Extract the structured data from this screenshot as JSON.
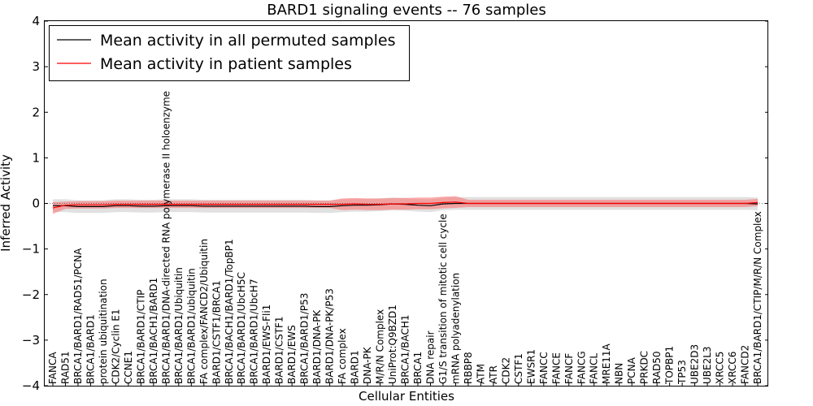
{
  "chart_data": {
    "type": "line",
    "title": "BARD1 signaling events -- 76 samples",
    "xlabel": "Cellular Entities",
    "ylabel": "Inferred Activity",
    "ylim": [
      -4,
      4
    ],
    "yticks": [
      -4,
      -3,
      -2,
      -1,
      0,
      1,
      2,
      3,
      4
    ],
    "ytick_labels": [
      "−4",
      "−3",
      "−2",
      "−1",
      "0",
      "1",
      "2",
      "3",
      "4"
    ],
    "legend": {
      "placement": "top-left",
      "entries": [
        {
          "label": "Mean activity in all permuted samples",
          "color": "#000000"
        },
        {
          "label": "Mean activity in patient samples",
          "color": "#ff0000"
        }
      ]
    },
    "categories": [
      "FANCA",
      "RAD51",
      "BRCA1/BARD1/RAD51/PCNA",
      "BRCA1/BARD1",
      "protein ubiquitination",
      "CDK2/Cyclin E1",
      "CCNE1",
      "BRCA1/BARD1/CTIP",
      "BRCA1/BACH1/BARD1",
      "BRCA1/BARD1/DNA-directed RNA polymerase II holoenzyme",
      "BRCA1/BARD1/Ubiquitin",
      "BRCA1/BARD1/ubiquitin",
      "FA complex/FANCD2/Ubiquitin",
      "BARD1/CSTF1/BRCA1",
      "BRCA1/BACH1/BARD1/TopBP1",
      "BRCA1/BARD1/UbcH5C",
      "BRCA1/BARD1/UbcH7",
      "BARD1/EWS-Fli1",
      "BARD1/CSTF1",
      "BARD1/EWS",
      "BRCA1/BARD1/P53",
      "BARD1/DNA-PK",
      "BARD1/DNA-PK/P53",
      "FA complex",
      "BARD1",
      "DNA-PK",
      "M/R/N Complex",
      "UniProt:Q9BZD1",
      "BRCA1/BACH1",
      "BRCA1",
      "DNA repair",
      "G1/S transition of mitotic cell cycle",
      "mRNA polyadenylation",
      "RBBP8",
      "ATM",
      "ATR",
      "CDK2",
      "CSTF1",
      "EWSR1",
      "FANCC",
      "FANCE",
      "FANCF",
      "FANCG",
      "FANCL",
      "MRE11A",
      "NBN",
      "PCNA",
      "PRKDC",
      "RAD50",
      "TOPBP1",
      "TP53",
      "UBE2D3",
      "UBE2L3",
      "XRCC5",
      "XRCC6",
      "FANCD2",
      "BRCA1/BARD1/CTIP/M/R/N Complex"
    ],
    "series": [
      {
        "name": "Mean activity in all permuted samples",
        "color": "#000000",
        "values": [
          -0.05,
          -0.05,
          -0.07,
          -0.07,
          -0.07,
          -0.05,
          -0.05,
          -0.06,
          -0.06,
          -0.05,
          -0.05,
          -0.05,
          -0.06,
          -0.06,
          -0.06,
          -0.06,
          -0.06,
          -0.06,
          -0.06,
          -0.06,
          -0.06,
          -0.07,
          -0.07,
          -0.05,
          -0.04,
          -0.04,
          -0.03,
          -0.01,
          -0.02,
          -0.04,
          -0.05,
          -0.01,
          0.0,
          0.0,
          0.0,
          0.0,
          0.0,
          0.0,
          0.0,
          0.0,
          0.0,
          0.0,
          0.0,
          0.0,
          0.0,
          0.0,
          0.0,
          0.0,
          0.0,
          0.0,
          0.0,
          0.0,
          0.0,
          0.0,
          0.0,
          0.0,
          -0.01
        ],
        "band": 0.14
      },
      {
        "name": "Mean activity in patient samples",
        "color": "#ff0000",
        "values": [
          -0.1,
          -0.04,
          -0.03,
          -0.03,
          -0.03,
          -0.02,
          -0.02,
          -0.02,
          -0.02,
          -0.02,
          -0.02,
          -0.02,
          -0.02,
          -0.02,
          -0.02,
          -0.02,
          -0.02,
          -0.02,
          -0.02,
          -0.02,
          -0.02,
          -0.02,
          -0.02,
          -0.02,
          -0.01,
          -0.02,
          -0.02,
          -0.01,
          -0.01,
          0.0,
          0.0,
          0.02,
          0.03,
          0.0,
          0.0,
          0.0,
          0.0,
          0.0,
          0.0,
          0.0,
          0.0,
          0.0,
          0.0,
          0.0,
          0.0,
          0.0,
          0.0,
          0.0,
          0.0,
          0.0,
          0.0,
          0.0,
          0.0,
          0.0,
          0.0,
          0.0,
          0.02
        ],
        "band": 0.08
      }
    ]
  }
}
